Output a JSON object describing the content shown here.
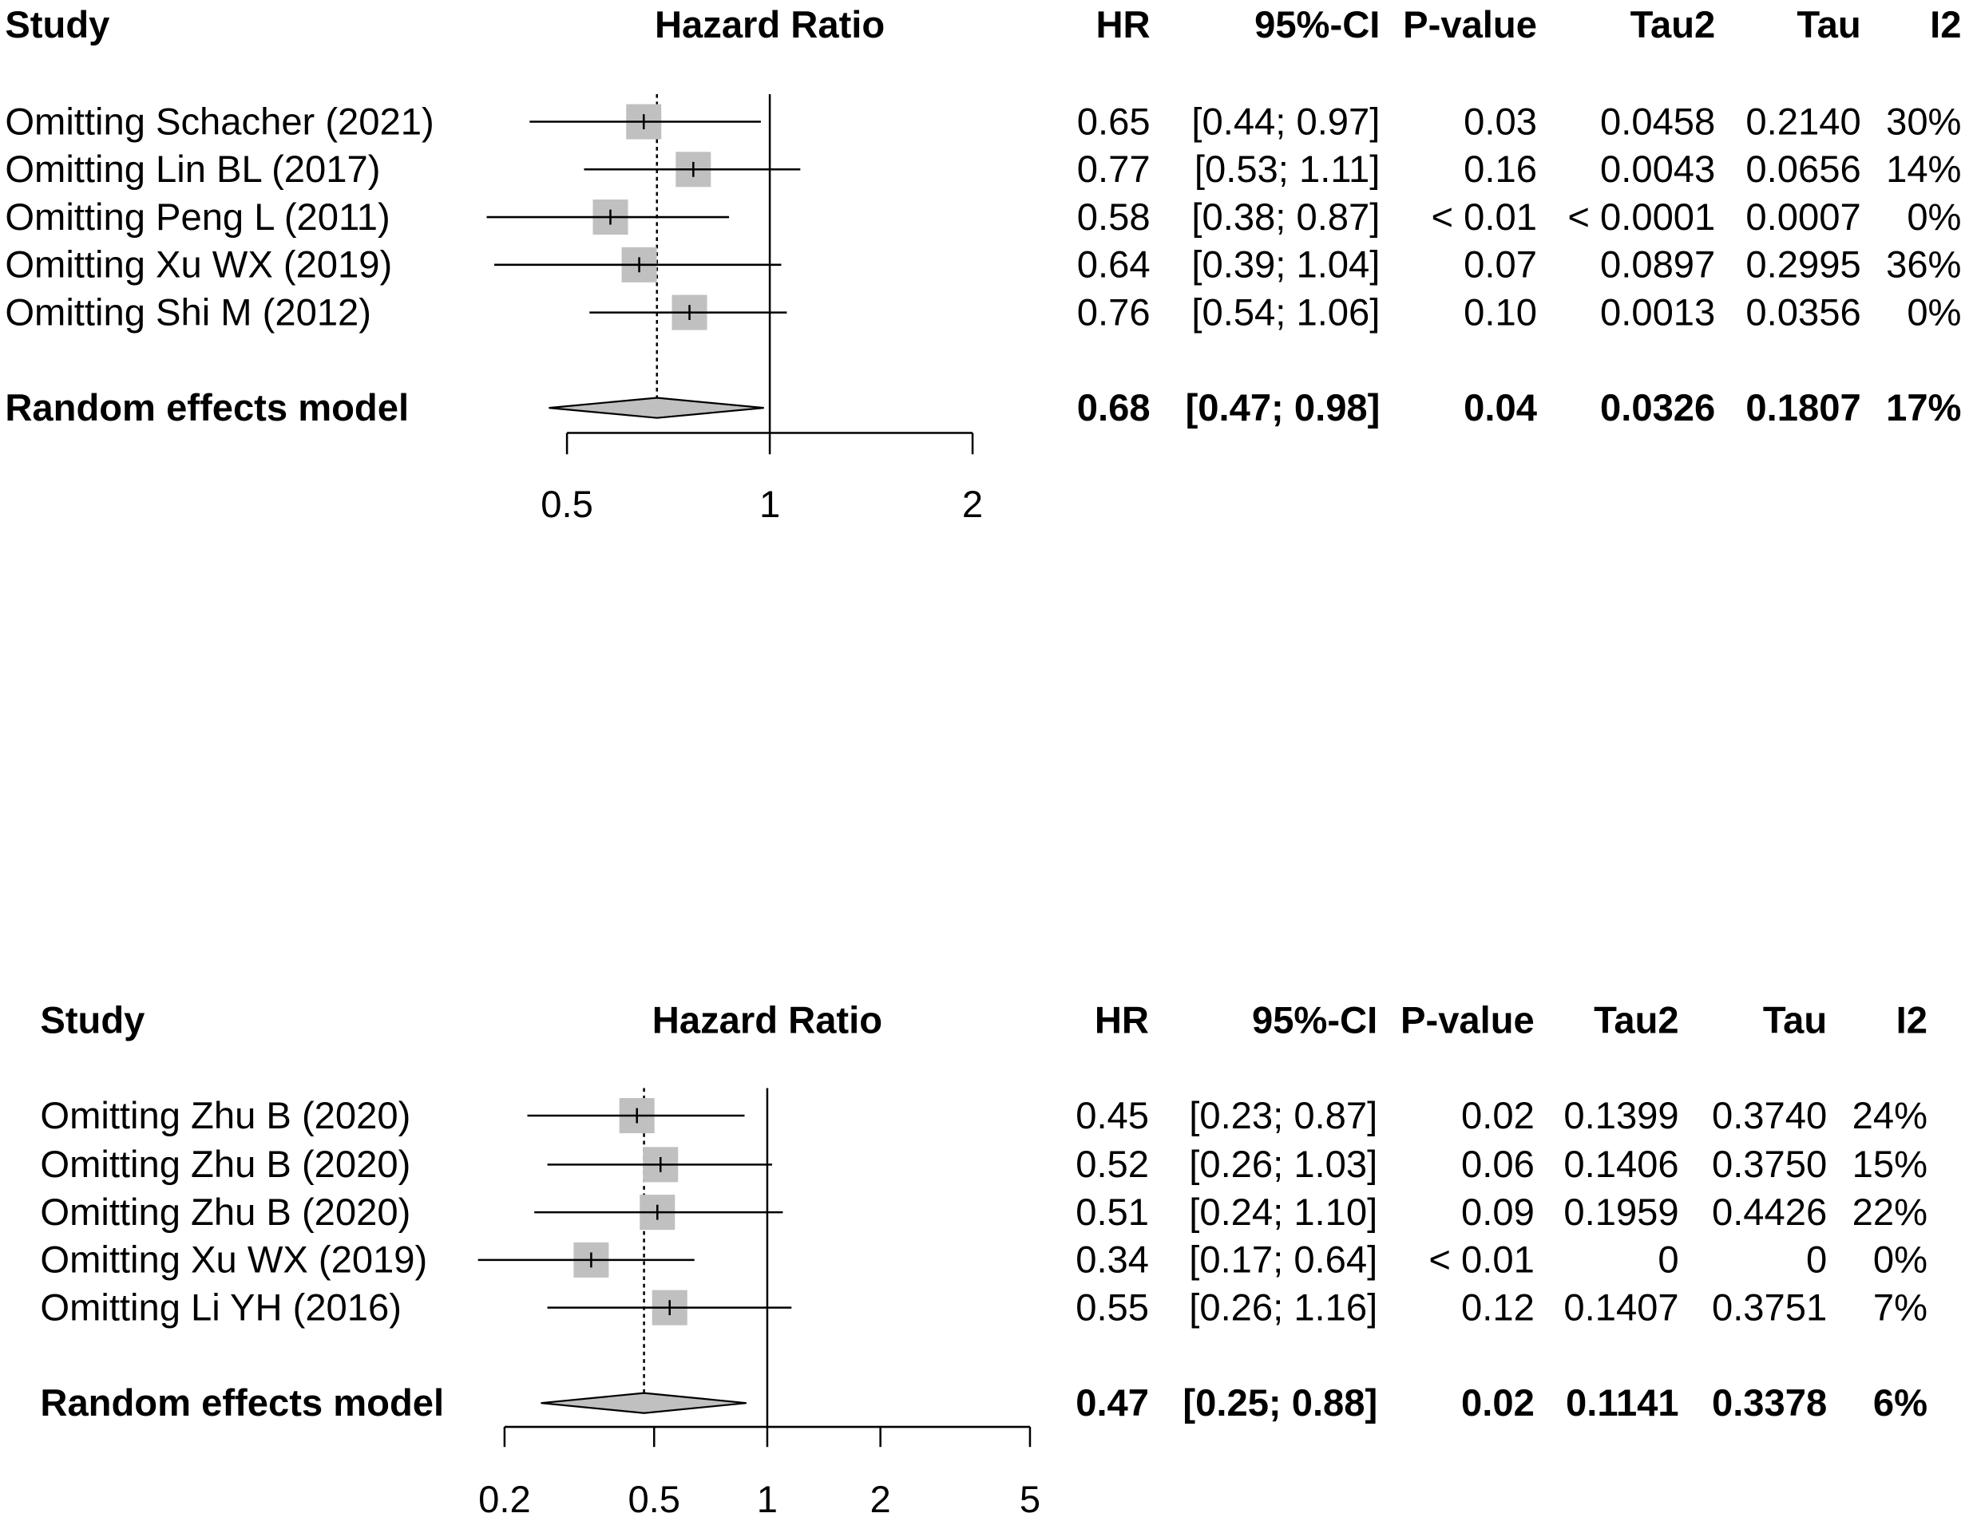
{
  "chart_data": [
    {
      "type": "forest",
      "scale": "log",
      "headers": {
        "study": "Study",
        "effect": "Hazard Ratio",
        "hr": "HR",
        "ci": "95%-CI",
        "p": "P-value",
        "tau2": "Tau2",
        "tau": "Tau",
        "i2": "I2"
      },
      "rows": [
        {
          "study": "Omitting Schacher (2021)",
          "hr": 0.65,
          "lo": 0.44,
          "hi": 0.97,
          "hr_text": "0.65",
          "ci_text": "[0.44; 0.97]",
          "p": "0.03",
          "tau2": "0.0458",
          "tau": "0.2140",
          "i2": "30%"
        },
        {
          "study": "Omitting Lin BL (2017)",
          "hr": 0.77,
          "lo": 0.53,
          "hi": 1.11,
          "hr_text": "0.77",
          "ci_text": "[0.53; 1.11]",
          "p": "0.16",
          "tau2": "0.0043",
          "tau": "0.0656",
          "i2": "14%"
        },
        {
          "study": "Omitting Peng L (2011)",
          "hr": 0.58,
          "lo": 0.38,
          "hi": 0.87,
          "hr_text": "0.58",
          "ci_text": "[0.38; 0.87]",
          "p": "< 0.01",
          "tau2": "< 0.0001",
          "tau": "0.0007",
          "i2": "0%"
        },
        {
          "study": "Omitting Xu WX (2019)",
          "hr": 0.64,
          "lo": 0.39,
          "hi": 1.04,
          "hr_text": "0.64",
          "ci_text": "[0.39; 1.04]",
          "p": "0.07",
          "tau2": "0.0897",
          "tau": "0.2995",
          "i2": "36%"
        },
        {
          "study": "Omitting Shi M (2012)",
          "hr": 0.76,
          "lo": 0.54,
          "hi": 1.06,
          "hr_text": "0.76",
          "ci_text": "[0.54; 1.06]",
          "p": "0.10",
          "tau2": "0.0013",
          "tau": "0.0356",
          "i2": "0%"
        }
      ],
      "model": {
        "study": "Random effects model",
        "hr": 0.68,
        "lo": 0.47,
        "hi": 0.98,
        "hr_text": "0.68",
        "ci_text": "[0.47; 0.98]",
        "p": "0.04",
        "tau2": "0.0326",
        "tau": "0.1807",
        "i2": "17%"
      },
      "xticks": [
        0.5,
        1,
        2
      ],
      "xtick_labels": [
        "0.5",
        "1",
        "2"
      ],
      "xlim": [
        0.5,
        2
      ]
    },
    {
      "type": "forest",
      "scale": "log",
      "headers": {
        "study": "Study",
        "effect": "Hazard Ratio",
        "hr": "HR",
        "ci": "95%-CI",
        "p": "P-value",
        "tau2": "Tau2",
        "tau": "Tau",
        "i2": "I2"
      },
      "rows": [
        {
          "study": "Omitting Zhu B (2020)",
          "hr": 0.45,
          "lo": 0.23,
          "hi": 0.87,
          "hr_text": "0.45",
          "ci_text": "[0.23; 0.87]",
          "p": "0.02",
          "tau2": "0.1399",
          "tau": "0.3740",
          "i2": "24%"
        },
        {
          "study": "Omitting Zhu B (2020)",
          "hr": 0.52,
          "lo": 0.26,
          "hi": 1.03,
          "hr_text": "0.52",
          "ci_text": "[0.26; 1.03]",
          "p": "0.06",
          "tau2": "0.1406",
          "tau": "0.3750",
          "i2": "15%"
        },
        {
          "study": "Omitting Zhu B (2020)",
          "hr": 0.51,
          "lo": 0.24,
          "hi": 1.1,
          "hr_text": "0.51",
          "ci_text": "[0.24; 1.10]",
          "p": "0.09",
          "tau2": "0.1959",
          "tau": "0.4426",
          "i2": "22%"
        },
        {
          "study": "Omitting Xu WX (2019)",
          "hr": 0.34,
          "lo": 0.17,
          "hi": 0.64,
          "hr_text": "0.34",
          "ci_text": "[0.17; 0.64]",
          "p": "< 0.01",
          "tau2": "0",
          "tau": "0",
          "i2": "0%"
        },
        {
          "study": "Omitting Li YH (2016)",
          "hr": 0.55,
          "lo": 0.26,
          "hi": 1.16,
          "hr_text": "0.55",
          "ci_text": "[0.26; 1.16]",
          "p": "0.12",
          "tau2": "0.1407",
          "tau": "0.3751",
          "i2": "7%"
        }
      ],
      "model": {
        "study": "Random effects model",
        "hr": 0.47,
        "lo": 0.25,
        "hi": 0.88,
        "hr_text": "0.47",
        "ci_text": "[0.25; 0.88]",
        "p": "0.02",
        "tau2": "0.1141",
        "tau": "0.3378",
        "i2": "6%"
      },
      "xticks": [
        0.2,
        0.5,
        1,
        2,
        5
      ],
      "xtick_labels": [
        "0.2",
        "0.5",
        "1",
        "2",
        "5"
      ],
      "xlim": [
        0.2,
        5
      ]
    }
  ],
  "colors": {
    "square": "#c0c0c0",
    "diamond": "#c0c0c0",
    "line": "#000000"
  }
}
